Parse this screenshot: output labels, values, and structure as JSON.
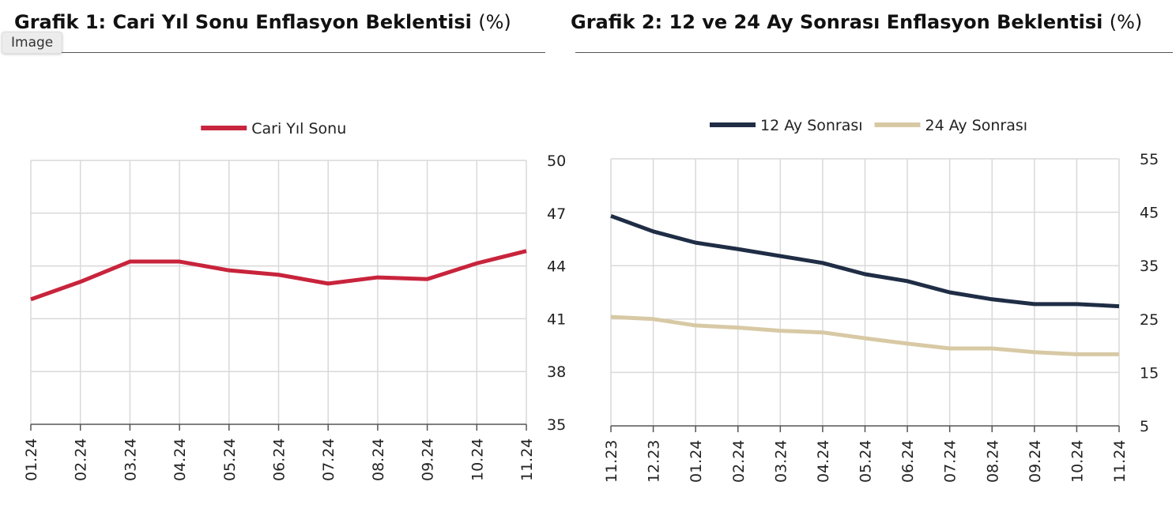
{
  "badge": "Image",
  "chart_data": [
    {
      "type": "line",
      "title": "Grafik 1: Cari Yıl Sonu Enflasyon Beklentisi",
      "unit": "(%)",
      "categories": [
        "01.24",
        "02.24",
        "03.24",
        "04.24",
        "05.24",
        "06.24",
        "07.24",
        "08.24",
        "09.24",
        "10.24",
        "11.24"
      ],
      "series": [
        {
          "name": "Cari Yıl Sonu",
          "color": "#c8243c",
          "values": [
            42.1,
            43.1,
            44.25,
            44.25,
            43.75,
            43.5,
            43.0,
            43.35,
            43.25,
            44.15,
            44.85
          ]
        }
      ],
      "ylim": [
        35,
        50
      ],
      "yticks": [
        35,
        38,
        41,
        44,
        47,
        50
      ],
      "yaxis_side": "right",
      "legend": "top-center",
      "grid": true
    },
    {
      "type": "line",
      "title": "Grafik 2: 12 ve 24 Ay Sonrası Enflasyon Beklentisi",
      "unit": "(%)",
      "categories": [
        "11.23",
        "12.23",
        "01.24",
        "02.24",
        "03.24",
        "04.24",
        "05.24",
        "06.24",
        "07.24",
        "08.24",
        "09.24",
        "10.24",
        "11.24"
      ],
      "series": [
        {
          "name": "12 Ay Sonrası",
          "color": "#1f2d45",
          "values": [
            44.3,
            41.4,
            39.3,
            38.1,
            36.8,
            35.5,
            33.4,
            32.1,
            30.0,
            28.7,
            27.8,
            27.8,
            27.4
          ]
        },
        {
          "name": "24 Ay Sonrası",
          "color": "#d8c9a5",
          "values": [
            25.4,
            25.0,
            23.8,
            23.4,
            22.8,
            22.5,
            21.4,
            20.4,
            19.5,
            19.5,
            18.8,
            18.4,
            18.4
          ]
        }
      ],
      "ylim": [
        5,
        55
      ],
      "yticks": [
        5,
        15,
        25,
        35,
        45,
        55
      ],
      "yaxis_side": "right",
      "legend": "top-center",
      "grid": true
    }
  ]
}
